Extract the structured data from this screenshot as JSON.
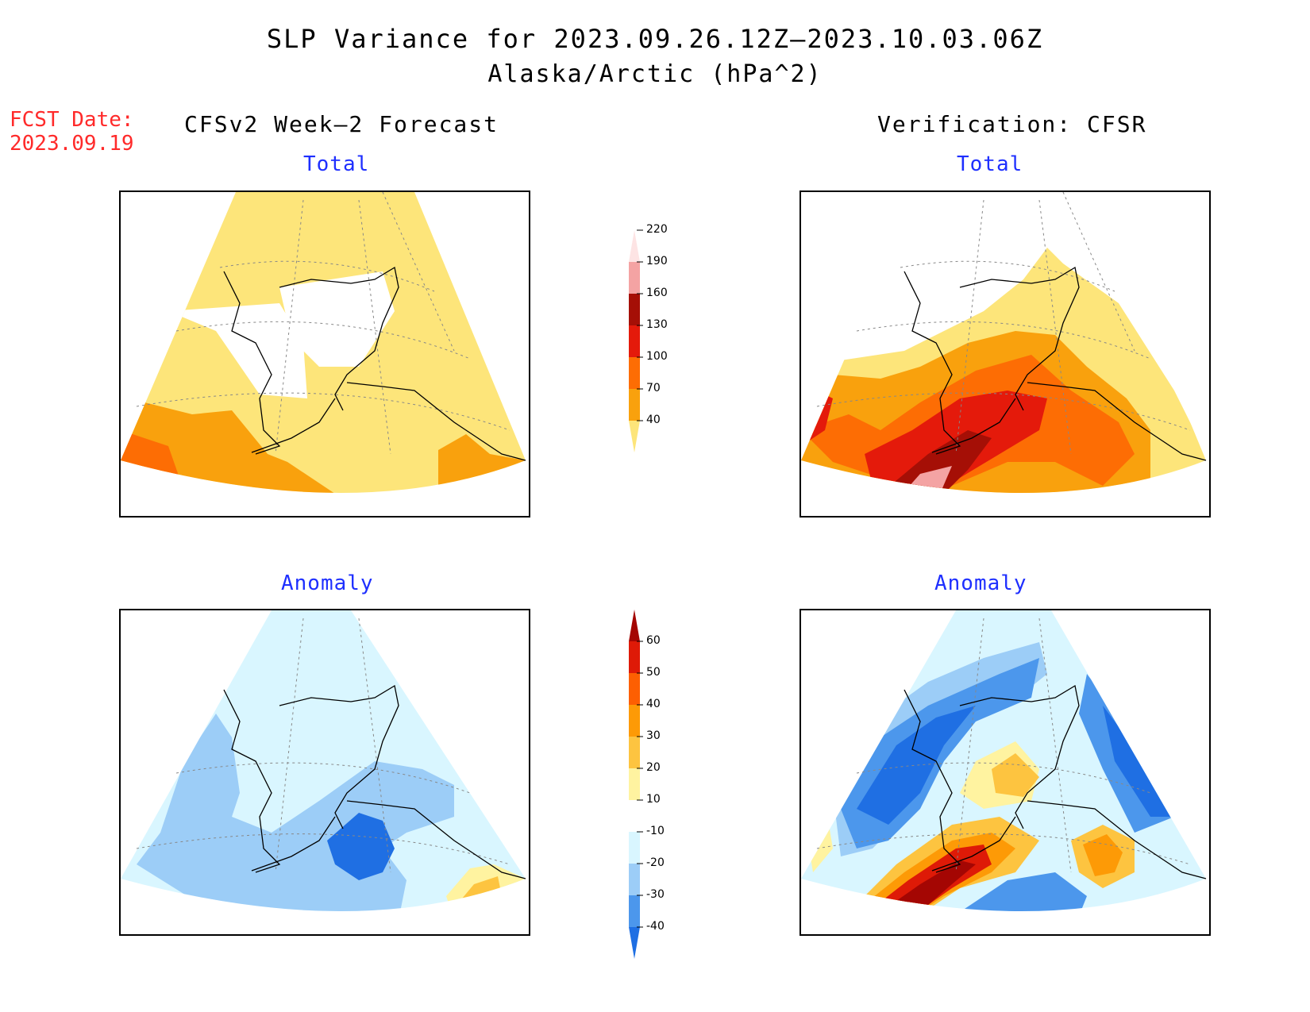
{
  "title": "SLP Variance for 2023.09.26.12Z—2023.10.03.06Z",
  "subtitle": "Alaska/Arctic (hPa^2)",
  "fcst_label": "FCST Date:",
  "fcst_date": "2023.09.19",
  "left_heading": "CFSv2 Week—2 Forecast",
  "right_heading": "Verification: CFSR",
  "panels": {
    "fc_total_title": "Total",
    "vf_total_title": "Total",
    "fc_anom_title": "Anomaly",
    "vf_anom_title": "Anomaly"
  },
  "colorbar_total": {
    "labels": [
      "40",
      "70",
      "100",
      "130",
      "160",
      "190",
      "220"
    ],
    "colors": [
      "#fde57a",
      "#f9a10d",
      "#fd6d04",
      "#e41a0b",
      "#a50f06",
      "#f4a3a3",
      "#fde4e4"
    ]
  },
  "colorbar_anomaly": {
    "labels": [
      "-40",
      "-30",
      "-20",
      "-10",
      "10",
      "20",
      "30",
      "40",
      "50",
      "60"
    ],
    "colors": [
      "#1f6fe3",
      "#4c97ec",
      "#9ccdf7",
      "#d9f6ff",
      "#ffffff",
      "#fff3a0",
      "#fdc440",
      "#fd9a06",
      "#fd5f02",
      "#de1a07",
      "#a40603"
    ]
  },
  "colors": {
    "title_red": "#ff2a2a",
    "panel_blue": "#1e2fff"
  }
}
